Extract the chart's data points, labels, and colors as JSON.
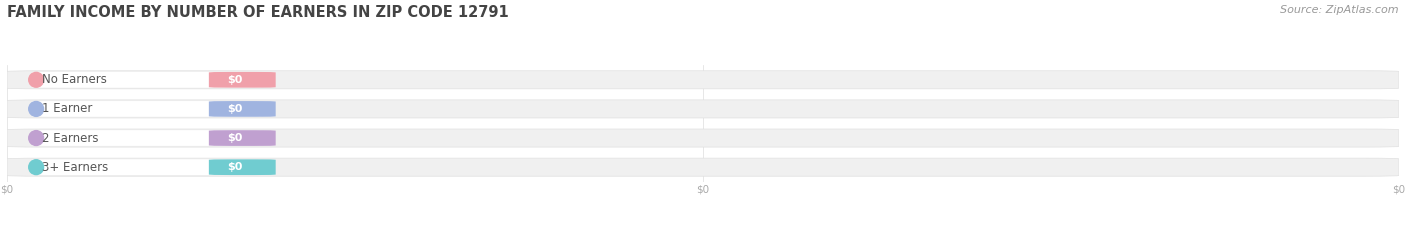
{
  "title": "FAMILY INCOME BY NUMBER OF EARNERS IN ZIP CODE 12791",
  "source_text": "Source: ZipAtlas.com",
  "categories": [
    "No Earners",
    "1 Earner",
    "2 Earners",
    "3+ Earners"
  ],
  "values": [
    0,
    0,
    0,
    0
  ],
  "bar_colors": [
    "#f0a0aa",
    "#a0b4e0",
    "#c0a0d0",
    "#70ccd0"
  ],
  "bar_track_color": "#f0f0f0",
  "bar_track_border": "#e0e0e0",
  "value_label": "$0",
  "xlim": [
    0,
    1
  ],
  "xlabel_ticks": [
    "$0",
    "$0",
    "$0"
  ],
  "xlabel_tick_positions": [
    0.0,
    0.5,
    1.0
  ],
  "background_color": "#ffffff",
  "title_fontsize": 10.5,
  "source_fontsize": 8,
  "label_fontsize": 8.5,
  "value_fontsize": 8
}
